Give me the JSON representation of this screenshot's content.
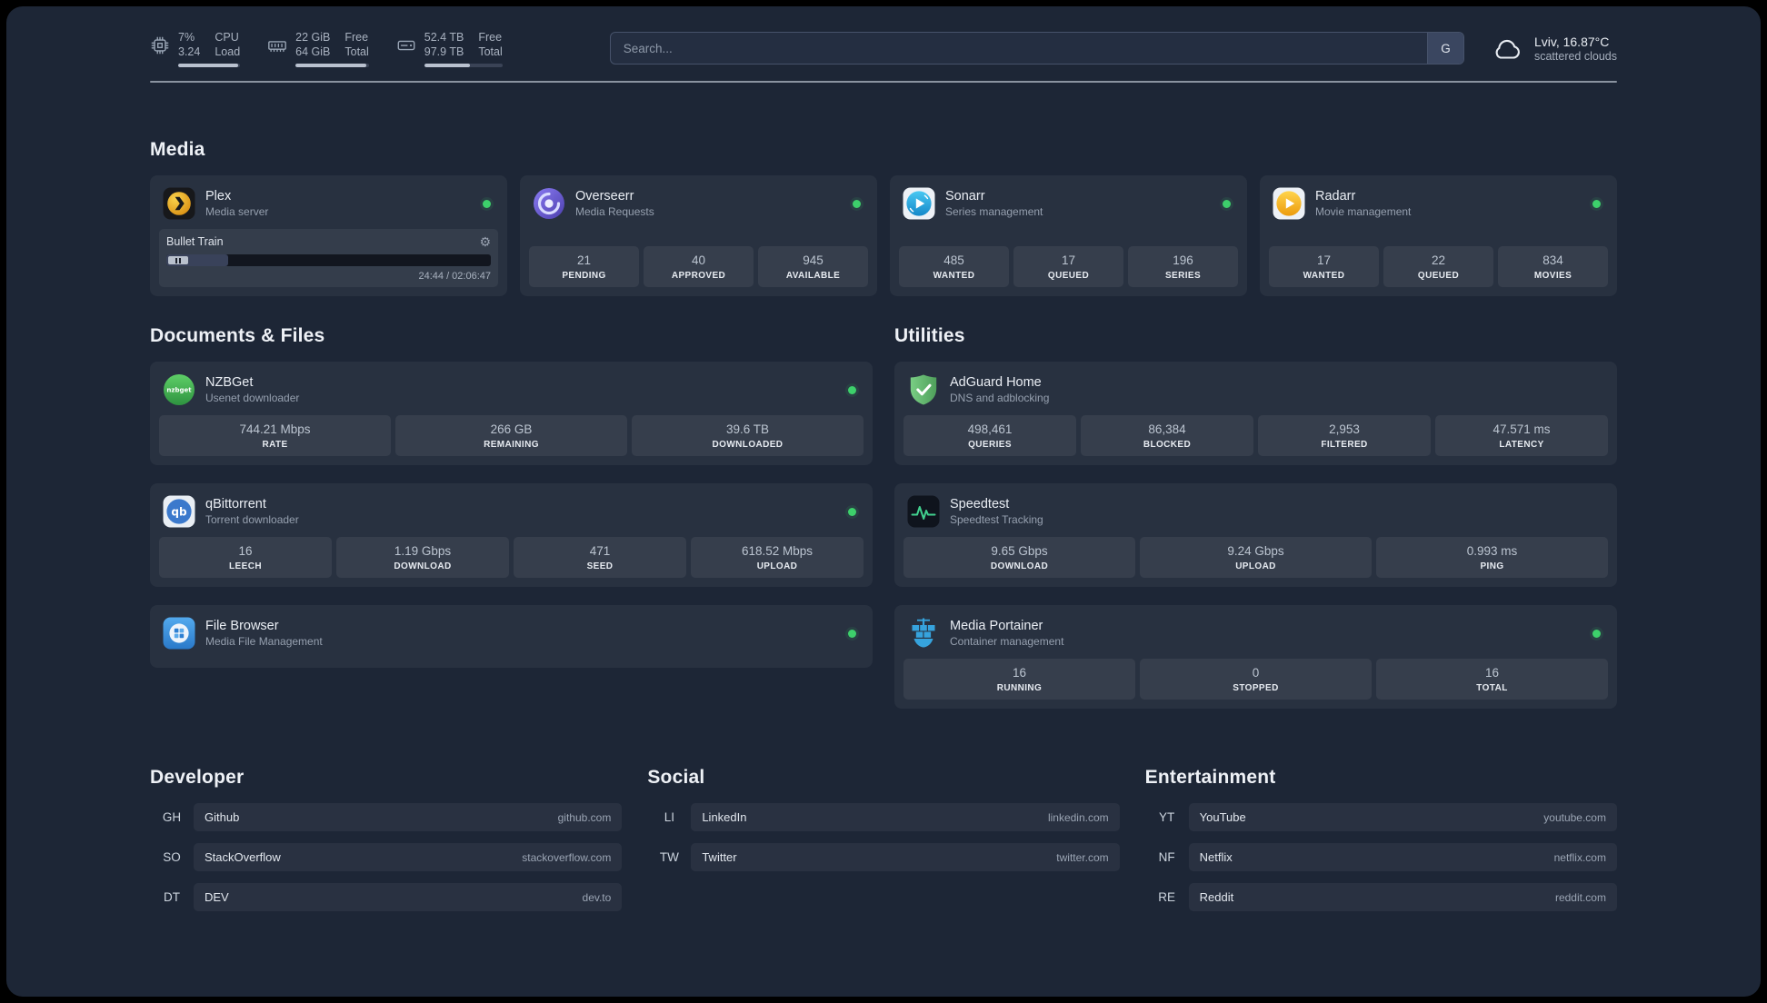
{
  "topbar": {
    "cpu": {
      "col1": [
        "7%",
        "3.24"
      ],
      "col2": [
        "CPU",
        "Load"
      ],
      "fill": 0.97
    },
    "ram": {
      "col1": [
        "22 GiB",
        "64 GiB"
      ],
      "col2": [
        "Free",
        "Total"
      ],
      "fill": 0.97
    },
    "disk": {
      "col1": [
        "52.4 TB",
        "97.9 TB"
      ],
      "col2": [
        "Free",
        "Total"
      ],
      "fill": 0.58
    },
    "search": {
      "placeholder": "Search...",
      "provider": "G"
    },
    "weather": {
      "location": "Lviv, 16.87°C",
      "condition": "scattered clouds"
    }
  },
  "media": {
    "title": "Media",
    "cards": [
      {
        "icon": "plex-icon",
        "title": "Plex",
        "subtitle": "Media server",
        "status": true,
        "player": {
          "track": "Bullet Train",
          "time": "24:44 / 02:06:47",
          "progress": 0.19
        }
      },
      {
        "icon": "overseerr-icon",
        "title": "Overseerr",
        "subtitle": "Media Requests",
        "status": true,
        "stats": [
          {
            "value": "21",
            "label": "PENDING"
          },
          {
            "value": "40",
            "label": "APPROVED"
          },
          {
            "value": "945",
            "label": "AVAILABLE"
          }
        ]
      },
      {
        "icon": "sonarr-icon",
        "title": "Sonarr",
        "subtitle": "Series management",
        "status": true,
        "stats": [
          {
            "value": "485",
            "label": "WANTED"
          },
          {
            "value": "17",
            "label": "QUEUED"
          },
          {
            "value": "196",
            "label": "SERIES"
          }
        ]
      },
      {
        "icon": "radarr-icon",
        "title": "Radarr",
        "subtitle": "Movie management",
        "status": true,
        "stats": [
          {
            "value": "17",
            "label": "WANTED"
          },
          {
            "value": "22",
            "label": "QUEUED"
          },
          {
            "value": "834",
            "label": "MOVIES"
          }
        ]
      }
    ]
  },
  "columns": [
    {
      "title": "Documents & Files",
      "cards": [
        {
          "icon": "nzbget-icon",
          "title": "NZBGet",
          "subtitle": "Usenet downloader",
          "status": true,
          "stats": [
            {
              "value": "744.21 Mbps",
              "label": "RATE"
            },
            {
              "value": "266 GB",
              "label": "REMAINING"
            },
            {
              "value": "39.6 TB",
              "label": "DOWNLOADED"
            }
          ]
        },
        {
          "icon": "qbittorrent-icon",
          "title": "qBittorrent",
          "subtitle": "Torrent downloader",
          "status": true,
          "stats": [
            {
              "value": "16",
              "label": "LEECH"
            },
            {
              "value": "1.19 Gbps",
              "label": "DOWNLOAD"
            },
            {
              "value": "471",
              "label": "SEED"
            },
            {
              "value": "618.52 Mbps",
              "label": "UPLOAD"
            }
          ]
        },
        {
          "icon": "filebrowser-icon",
          "title": "File Browser",
          "subtitle": "Media File Management",
          "status": true
        }
      ]
    },
    {
      "title": "Utilities",
      "cards": [
        {
          "icon": "adguard-icon",
          "title": "AdGuard Home",
          "subtitle": "DNS and adblocking",
          "status": false,
          "stats": [
            {
              "value": "498,461",
              "label": "QUERIES"
            },
            {
              "value": "86,384",
              "label": "BLOCKED"
            },
            {
              "value": "2,953",
              "label": "FILTERED"
            },
            {
              "value": "47.571 ms",
              "label": "LATENCY"
            }
          ]
        },
        {
          "icon": "speedtest-icon",
          "title": "Speedtest",
          "subtitle": "Speedtest Tracking",
          "status": false,
          "stats": [
            {
              "value": "9.65 Gbps",
              "label": "DOWNLOAD"
            },
            {
              "value": "9.24 Gbps",
              "label": "UPLOAD"
            },
            {
              "value": "0.993 ms",
              "label": "PING"
            }
          ]
        },
        {
          "icon": "portainer-icon",
          "title": "Media Portainer",
          "subtitle": "Container management",
          "status": true,
          "stats": [
            {
              "value": "16",
              "label": "RUNNING"
            },
            {
              "value": "0",
              "label": "STOPPED"
            },
            {
              "value": "16",
              "label": "TOTAL"
            }
          ]
        }
      ]
    }
  ],
  "bookmarks": [
    {
      "title": "Developer",
      "items": [
        {
          "abbr": "GH",
          "name": "Github",
          "url": "github.com"
        },
        {
          "abbr": "SO",
          "name": "StackOverflow",
          "url": "stackoverflow.com"
        },
        {
          "abbr": "DT",
          "name": "DEV",
          "url": "dev.to"
        }
      ]
    },
    {
      "title": "Social",
      "items": [
        {
          "abbr": "LI",
          "name": "LinkedIn",
          "url": "linkedin.com"
        },
        {
          "abbr": "TW",
          "name": "Twitter",
          "url": "twitter.com"
        }
      ]
    },
    {
      "title": "Entertainment",
      "items": [
        {
          "abbr": "YT",
          "name": "YouTube",
          "url": "youtube.com"
        },
        {
          "abbr": "NF",
          "name": "Netflix",
          "url": "netflix.com"
        },
        {
          "abbr": "RE",
          "name": "Reddit",
          "url": "reddit.com"
        }
      ]
    }
  ],
  "colors": {
    "status_online": "#3dd06b",
    "speedtest_accent": "#41d08e",
    "background": "#1d2636"
  }
}
